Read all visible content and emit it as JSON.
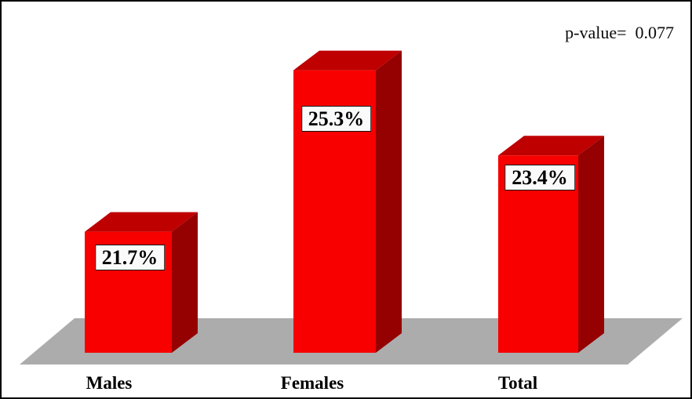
{
  "chart_data": {
    "type": "bar",
    "title": "",
    "xlabel": "",
    "ylabel": "",
    "categories": [
      "Males",
      "Females",
      "Total"
    ],
    "values": [
      21.7,
      25.3,
      23.4
    ],
    "value_labels": [
      "21.7%",
      "25.3%",
      "23.4%"
    ],
    "ylim": [
      19,
      27
    ],
    "grid": false,
    "legend": "none",
    "style": "3d-block-bars-on-gray-floor",
    "annotation": "p-value=  0.077",
    "colors": {
      "bar_front": "#F80000",
      "bar_top": "#BE0000",
      "bar_side": "#950000",
      "floor": "#ACACAC",
      "label_bg": "#FAFAFA",
      "label_border": "#111111",
      "text": "#000000",
      "background": "#FFFFFF",
      "canvas_border": "#000000"
    }
  }
}
